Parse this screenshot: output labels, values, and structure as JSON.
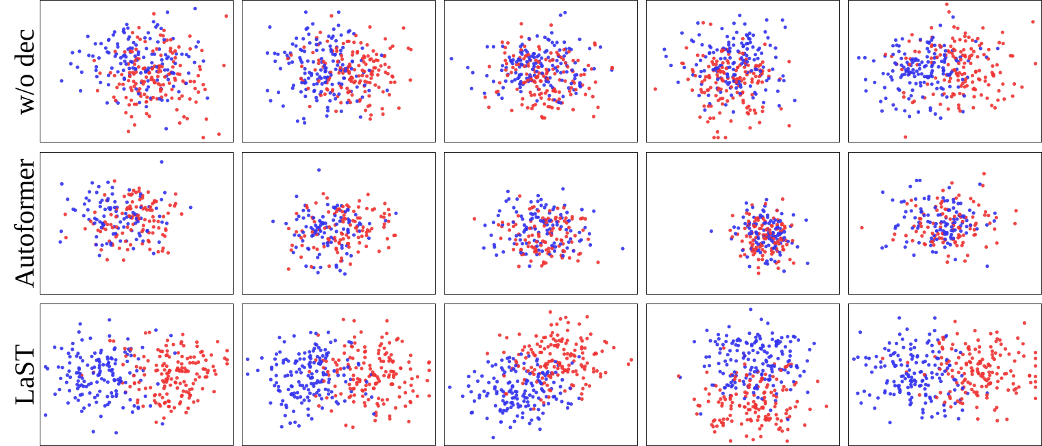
{
  "chart_data": {
    "type": "scatter",
    "rows": [
      "w/o dec",
      "Autoformer",
      "LaST"
    ],
    "colors": {
      "red": "#ee3333",
      "blue": "#3333ee"
    },
    "panels": [
      {
        "row": "w/o dec",
        "col": 1,
        "cx": 0.55,
        "cy": 0.5,
        "sx": 0.26,
        "sy": 0.28,
        "red": 150,
        "blue": 140,
        "sep": 0.15,
        "axis": "diag",
        "seed": 11
      },
      {
        "row": "w/o dec",
        "col": 2,
        "cx": 0.5,
        "cy": 0.5,
        "sx": 0.24,
        "sy": 0.26,
        "red": 150,
        "blue": 150,
        "sep": 0.18,
        "axis": "x",
        "seed": 12
      },
      {
        "row": "w/o dec",
        "col": 3,
        "cx": 0.5,
        "cy": 0.5,
        "sx": 0.25,
        "sy": 0.24,
        "red": 150,
        "blue": 150,
        "sep": 0.1,
        "axis": "y",
        "seed": 13
      },
      {
        "row": "w/o dec",
        "col": 4,
        "cx": 0.45,
        "cy": 0.5,
        "sx": 0.22,
        "sy": 0.28,
        "red": 150,
        "blue": 150,
        "sep": 0.14,
        "axis": "y",
        "seed": 14
      },
      {
        "row": "w/o dec",
        "col": 5,
        "cx": 0.5,
        "cy": 0.48,
        "sx": 0.25,
        "sy": 0.25,
        "red": 150,
        "blue": 150,
        "sep": 0.18,
        "axis": "x",
        "seed": 15
      },
      {
        "row": "Autoformer",
        "col": 1,
        "cx": 0.45,
        "cy": 0.48,
        "sx": 0.24,
        "sy": 0.22,
        "red": 110,
        "blue": 95,
        "sep": 0.05,
        "axis": "x",
        "seed": 21
      },
      {
        "row": "Autoformer",
        "col": 2,
        "cx": 0.5,
        "cy": 0.55,
        "sx": 0.22,
        "sy": 0.22,
        "red": 110,
        "blue": 100,
        "sep": 0.05,
        "axis": "x",
        "seed": 22
      },
      {
        "row": "Autoformer",
        "col": 3,
        "cx": 0.5,
        "cy": 0.55,
        "sx": 0.22,
        "sy": 0.22,
        "red": 110,
        "blue": 110,
        "sep": 0.04,
        "axis": "y",
        "seed": 23
      },
      {
        "row": "Autoformer",
        "col": 4,
        "cx": 0.62,
        "cy": 0.58,
        "sx": 0.14,
        "sy": 0.2,
        "red": 110,
        "blue": 110,
        "sep": 0.04,
        "axis": "y",
        "seed": 24
      },
      {
        "row": "Autoformer",
        "col": 5,
        "cx": 0.5,
        "cy": 0.5,
        "sx": 0.24,
        "sy": 0.22,
        "red": 100,
        "blue": 110,
        "sep": 0.05,
        "axis": "x",
        "seed": 25
      },
      {
        "row": "LaST",
        "col": 1,
        "cx": 0.5,
        "cy": 0.5,
        "sx": 0.24,
        "sy": 0.25,
        "red": 160,
        "blue": 150,
        "sep": 0.36,
        "axis": "x",
        "seed": 31
      },
      {
        "row": "LaST",
        "col": 2,
        "cx": 0.5,
        "cy": 0.52,
        "sx": 0.24,
        "sy": 0.25,
        "red": 160,
        "blue": 160,
        "sep": 0.32,
        "axis": "x",
        "seed": 32
      },
      {
        "row": "LaST",
        "col": 3,
        "cx": 0.48,
        "cy": 0.5,
        "sx": 0.25,
        "sy": 0.25,
        "red": 160,
        "blue": 160,
        "sep": 0.3,
        "axis": "diag2",
        "seed": 33
      },
      {
        "row": "LaST",
        "col": 4,
        "cx": 0.55,
        "cy": 0.55,
        "sx": 0.24,
        "sy": 0.24,
        "red": 150,
        "blue": 170,
        "sep": 0.28,
        "axis": "y",
        "seed": 34
      },
      {
        "row": "LaST",
        "col": 5,
        "cx": 0.52,
        "cy": 0.5,
        "sx": 0.26,
        "sy": 0.25,
        "red": 160,
        "blue": 160,
        "sep": 0.34,
        "axis": "x",
        "seed": 35
      }
    ]
  }
}
